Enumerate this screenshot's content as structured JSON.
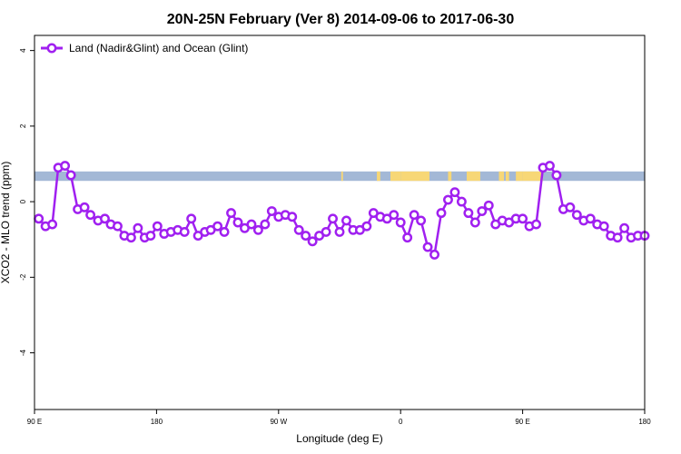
{
  "chart_data": {
    "type": "line",
    "title": "20N-25N February (Ver 8)   2014-09-06 to 2017-06-30",
    "xlabel": "Longitude (deg E)",
    "ylabel": "XCO2 - MLO trend (ppm)",
    "xlim": [
      90,
      450
    ],
    "ylim": [
      -5.5,
      4.4
    ],
    "x_ticks": [
      {
        "value": 90,
        "label": "90 E"
      },
      {
        "value": 162,
        "label": "180"
      },
      {
        "value": 234,
        "label": "90 W"
      },
      {
        "value": 306,
        "label": "0"
      },
      {
        "value": 378,
        "label": "90 E"
      },
      {
        "value": 450,
        "label": "180"
      }
    ],
    "y_ticks": [
      {
        "value": 4,
        "label": "4"
      },
      {
        "value": 2,
        "label": "2"
      },
      {
        "value": 0,
        "label": "0"
      },
      {
        "value": -2,
        "label": "-2"
      },
      {
        "value": -4,
        "label": "-4"
      }
    ],
    "grid": false,
    "legend_position": "top-left",
    "land_ocean_band": {
      "y_range": [
        0.55,
        0.8
      ],
      "ocean_color": "#a3b8d6",
      "land_color": "#f7d776",
      "land_segments": [
        [
          271,
          272
        ],
        [
          292,
          294
        ],
        [
          300,
          306
        ],
        [
          306,
          323
        ],
        [
          334,
          336
        ],
        [
          345,
          353
        ],
        [
          364,
          367
        ],
        [
          368,
          370
        ],
        [
          374,
          378
        ],
        [
          378,
          390
        ]
      ]
    },
    "series": [
      {
        "name": "Land (Nadir&Glint) and Ocean (Glint)",
        "color": "#a020f0",
        "x": [
          92.5,
          96.5,
          100.5,
          104,
          108,
          111.5,
          115.5,
          119.5,
          123,
          127.5,
          131.5,
          135,
          139,
          143,
          147,
          151,
          155,
          158.5,
          162.5,
          166.5,
          170.5,
          174.5,
          178.5,
          182.5,
          186.5,
          190.5,
          194,
          198,
          202,
          206,
          210,
          214,
          218,
          222,
          226,
          230,
          234,
          238,
          242,
          246,
          250,
          254,
          258,
          262,
          266,
          270,
          274,
          278,
          282,
          286,
          290,
          294,
          298,
          302,
          306,
          310,
          314,
          318,
          322,
          326,
          330,
          334,
          338,
          342,
          346,
          350,
          354,
          358,
          362,
          366,
          370,
          374,
          378,
          382,
          386,
          390,
          394,
          398,
          402,
          406,
          410,
          414,
          418,
          422,
          426,
          430,
          434,
          438,
          442,
          446,
          450
        ],
        "values": [
          -0.45,
          -0.65,
          -0.6,
          0.9,
          0.95,
          0.7,
          -0.2,
          -0.15,
          -0.35,
          -0.5,
          -0.45,
          -0.6,
          -0.65,
          -0.9,
          -0.95,
          -0.7,
          -0.95,
          -0.9,
          -0.65,
          -0.85,
          -0.8,
          -0.75,
          -0.8,
          -0.45,
          -0.9,
          -0.8,
          -0.75,
          -0.65,
          -0.8,
          -0.3,
          -0.55,
          -0.7,
          -0.6,
          -0.75,
          -0.6,
          -0.25,
          -0.4,
          -0.35,
          -0.4,
          -0.75,
          -0.9,
          -1.05,
          -0.9,
          -0.8,
          -0.45,
          -0.8,
          -0.5,
          -0.75,
          -0.75,
          -0.65,
          -0.3,
          -0.4,
          -0.45,
          -0.35,
          -0.55,
          -0.95,
          -0.35,
          -0.5,
          -1.2,
          -1.4,
          -0.3,
          0.05,
          0.25,
          0.0,
          -0.3,
          -0.55,
          -0.25,
          -0.1,
          -0.6,
          -0.5,
          -0.55,
          -0.45,
          -0.45,
          -0.65,
          -0.6,
          0.9,
          0.95,
          0.7,
          -0.2,
          -0.15,
          -0.35,
          -0.5,
          -0.45,
          -0.6,
          -0.65,
          -0.9,
          -0.95,
          -0.7,
          -0.95,
          -0.9,
          -0.9
        ]
      }
    ]
  }
}
